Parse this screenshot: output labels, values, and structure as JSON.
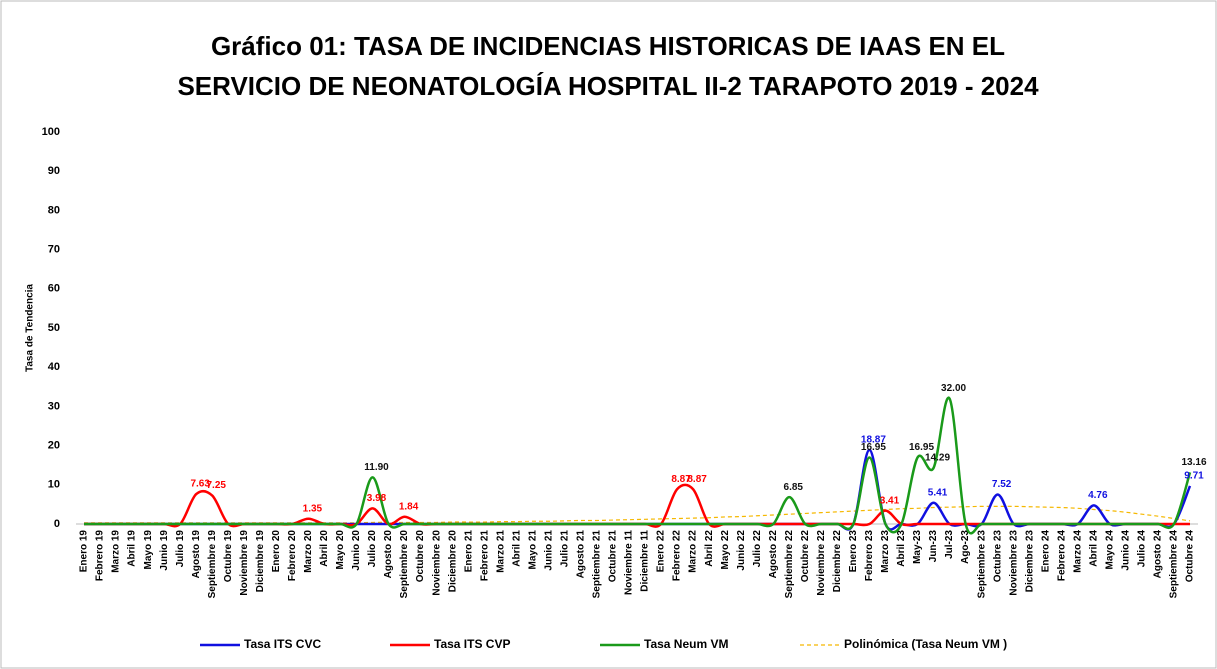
{
  "chart_data": {
    "type": "line",
    "title": [
      "Gráfico 01: TASA DE INCIDENCIAS HISTORICAS DE IAAS EN EL",
      "SERVICIO DE NEONATOLOGÍA HOSPITAL II-2 TARAPOTO 2019 - 2024"
    ],
    "y_label": "Tasa de Tendencia",
    "categories": [
      "Enero 19",
      "Febrero 19",
      "Marzo 19",
      "Abril 19",
      "Mayo 19",
      "Junio 19",
      "Julio 19",
      "Agosto 19",
      "Septiembre 19",
      "Octubre 19",
      "Noviembre 19",
      "Diciembre 19",
      "Enero 20",
      "Febrero 20",
      "Marzo 20",
      "Abril 20",
      "Mayo 20",
      "Junio 20",
      "Julio 20",
      "Agosto 20",
      "Septiembre 20",
      "Octubre 20",
      "Noviembre 20",
      "Diciembre 20",
      "Enero 21",
      "Febrero 21",
      "Marzo 21",
      "Abril 21",
      "Mayo 21",
      "Junio 21",
      "Julio 21",
      "Agosto 21",
      "Septiembre 21",
      "Octubre 21",
      "Noviembre 11",
      "Diciembre 11",
      "Enero 22",
      "Febrero 22",
      "Marzo 22",
      "Abril 22",
      "Mayo 22",
      "Junio 22",
      "Julio 22",
      "Agosto 22",
      "Septiembre 22",
      "Octubre 22",
      "Noviembre 22",
      "Diciembre 22",
      "Enero 23",
      "Febrero 23",
      "Marzo 23",
      "Abril 23",
      "May-23",
      "Jun-23",
      "Jul-23",
      "Ago-23",
      "Septiembre 23",
      "Octubre 23",
      "Noviembre 23",
      "Diciembre 23",
      "Enero 24",
      "Febrero 24",
      "Marzo 24",
      "Abril 24",
      "Mayo 24",
      "Junio 24",
      "Julio 24",
      "Agosto 24",
      "Septiembre 24",
      "Octubre 24"
    ],
    "series": [
      {
        "name": "Tasa ITS CVC",
        "color": "#1010e0",
        "dashed": false,
        "values": [
          0,
          0,
          0,
          0,
          0,
          0,
          0,
          0,
          0,
          0,
          0,
          0,
          0,
          0,
          0,
          0,
          0,
          0,
          0,
          0,
          0,
          0,
          0,
          0,
          0,
          0,
          0,
          0,
          0,
          0,
          0,
          0,
          0,
          0,
          0,
          0,
          0,
          0,
          0,
          0,
          0,
          0,
          0,
          0,
          0,
          0,
          0,
          0,
          0,
          18.87,
          0,
          0,
          0,
          5.41,
          0,
          0,
          0,
          7.52,
          0,
          0,
          0,
          0,
          0,
          4.76,
          0,
          0,
          0,
          0,
          0,
          9.71
        ],
        "value_labels": [
          null,
          null,
          null,
          null,
          null,
          null,
          null,
          null,
          null,
          null,
          null,
          null,
          null,
          null,
          null,
          null,
          null,
          null,
          null,
          null,
          null,
          null,
          null,
          null,
          null,
          null,
          null,
          null,
          null,
          null,
          null,
          null,
          null,
          null,
          null,
          null,
          null,
          null,
          null,
          null,
          null,
          null,
          null,
          null,
          null,
          null,
          null,
          null,
          null,
          "18.87",
          null,
          null,
          null,
          "5.41",
          null,
          null,
          null,
          "7.52",
          null,
          null,
          null,
          null,
          null,
          "4.76",
          null,
          null,
          null,
          null,
          null,
          "9.71"
        ]
      },
      {
        "name": "Tasa ITS CVP",
        "color": "#ff0000",
        "dashed": false,
        "values": [
          0,
          0,
          0,
          0,
          0,
          0,
          0,
          7.63,
          7.25,
          0,
          0,
          0,
          0,
          0,
          1.35,
          0,
          0,
          0,
          3.98,
          0,
          1.84,
          0,
          0,
          0,
          0,
          0,
          0,
          0,
          0,
          0,
          0,
          0,
          0,
          0,
          0,
          0,
          0,
          8.87,
          8.87,
          0,
          0,
          0,
          0,
          0,
          0,
          0,
          0,
          0,
          0,
          0,
          3.41,
          0,
          0,
          0,
          0,
          0,
          0,
          0,
          0,
          0,
          0,
          0,
          0,
          0,
          0,
          0,
          0,
          0,
          0,
          0
        ],
        "value_labels": [
          null,
          null,
          null,
          null,
          null,
          null,
          null,
          "7.63",
          "7.25",
          null,
          null,
          null,
          null,
          null,
          "1.35",
          null,
          null,
          null,
          "3.98",
          null,
          "1.84",
          null,
          null,
          null,
          null,
          null,
          null,
          null,
          null,
          null,
          null,
          null,
          null,
          null,
          null,
          null,
          null,
          "8.87",
          "8.87",
          null,
          null,
          null,
          null,
          null,
          null,
          null,
          null,
          null,
          null,
          null,
          "3.41",
          null,
          null,
          null,
          null,
          null,
          null,
          null,
          null,
          null,
          null,
          null,
          null,
          null,
          null,
          null,
          null,
          null,
          null,
          null
        ]
      },
      {
        "name": "Tasa Neum VM",
        "color": "#1a9a1a",
        "dashed": false,
        "values": [
          0,
          0,
          0,
          0,
          0,
          0,
          0,
          0,
          0,
          0,
          0,
          0,
          0,
          0,
          0,
          0,
          0,
          0,
          11.9,
          0,
          0,
          0,
          0,
          0,
          0,
          0,
          0,
          0,
          0,
          0,
          0,
          0,
          0,
          0,
          0,
          0,
          0,
          0,
          0,
          0,
          0,
          0,
          0,
          0,
          6.85,
          0,
          0,
          0,
          0,
          16.95,
          0,
          0,
          16.95,
          14.29,
          32,
          0,
          0,
          0,
          0,
          0,
          0,
          0,
          0,
          0,
          0,
          0,
          0,
          0,
          0,
          13.16
        ],
        "value_labels": [
          null,
          null,
          null,
          null,
          null,
          null,
          null,
          null,
          null,
          null,
          null,
          null,
          null,
          null,
          null,
          null,
          null,
          null,
          "11.90",
          null,
          null,
          null,
          null,
          null,
          null,
          null,
          null,
          null,
          null,
          null,
          null,
          null,
          null,
          null,
          null,
          null,
          null,
          null,
          null,
          null,
          null,
          null,
          null,
          null,
          "6.85",
          null,
          null,
          null,
          null,
          "16.95",
          null,
          null,
          "16.95",
          "14.29",
          "32.00",
          null,
          null,
          null,
          null,
          null,
          null,
          null,
          null,
          null,
          null,
          null,
          null,
          null,
          null,
          "13.16"
        ]
      },
      {
        "name": "Polinómica (Tasa Neum VM )",
        "color": "#f5b800",
        "dashed": true,
        "values": [
          0.3,
          0.3,
          0.3,
          0.3,
          0.3,
          0.3,
          0.3,
          0.3,
          0.3,
          0.3,
          0.3,
          0.3,
          0.3,
          0.3,
          0.3,
          0.3,
          0.3,
          0.3,
          0.4,
          0.4,
          0.4,
          0.4,
          0.4,
          0.5,
          0.5,
          0.5,
          0.6,
          0.6,
          0.7,
          0.7,
          0.8,
          0.9,
          0.9,
          1.0,
          1.1,
          1.2,
          1.3,
          1.4,
          1.5,
          1.6,
          1.8,
          1.9,
          2.1,
          2.3,
          2.5,
          2.7,
          2.9,
          3.1,
          3.3,
          3.5,
          3.7,
          3.9,
          4.0,
          4.2,
          4.3,
          4.4,
          4.5,
          4.5,
          4.5,
          4.4,
          4.3,
          4.2,
          4.0,
          3.7,
          3.4,
          3.0,
          2.5,
          2.0,
          1.4,
          0.8
        ]
      }
    ],
    "ylim": [
      0,
      100
    ],
    "yticks": [
      0,
      10,
      20,
      30,
      40,
      50,
      60,
      70,
      80,
      90,
      100
    ],
    "grid": false,
    "legend": "bottom"
  }
}
